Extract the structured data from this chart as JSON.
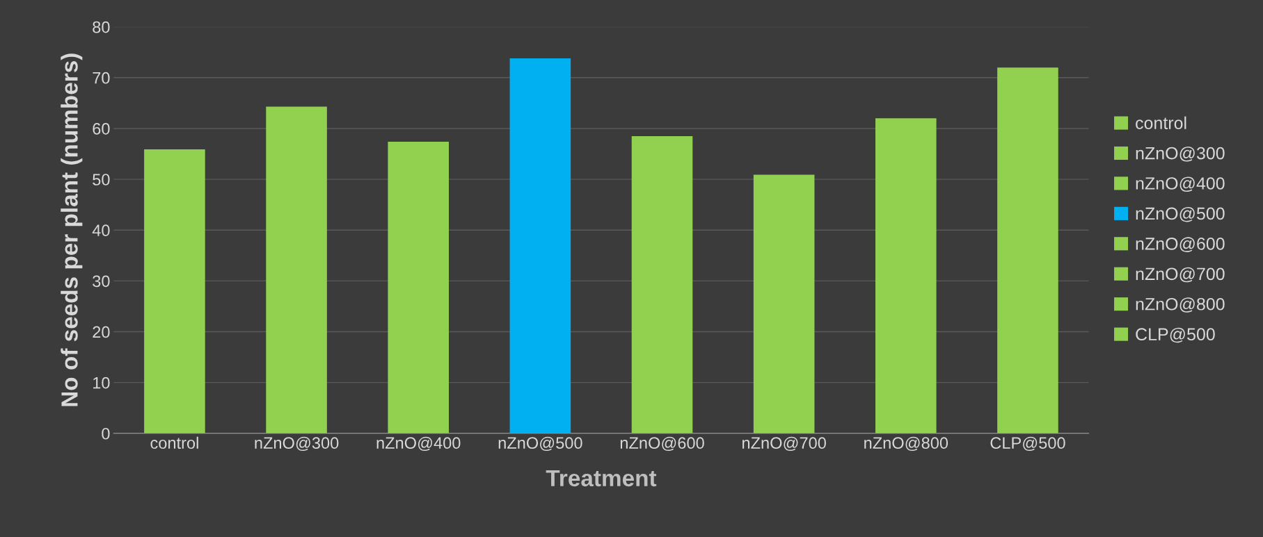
{
  "chart_data": {
    "type": "bar",
    "xlabel": "Treatment",
    "ylabel": "No of seeds per plant (numbers)",
    "stacked": true,
    "categories": [
      "control",
      "nZnO@300",
      "nZnO@400",
      "nZnO@500",
      "nZnO@600",
      "nZnO@700",
      "nZnO@800",
      "CLP@500"
    ],
    "series": [
      {
        "name": "control",
        "color": "#92d050",
        "values": [
          55.9,
          null,
          null,
          null,
          null,
          null,
          null,
          null
        ]
      },
      {
        "name": "nZnO@300",
        "color": "#92d050",
        "values": [
          null,
          64.3,
          null,
          null,
          null,
          null,
          null,
          null
        ]
      },
      {
        "name": "nZnO@400",
        "color": "#92d050",
        "values": [
          null,
          null,
          57.4,
          null,
          null,
          null,
          null,
          null
        ]
      },
      {
        "name": "nZnO@500",
        "color": "#00b0f0",
        "values": [
          null,
          null,
          null,
          73.8,
          null,
          null,
          null,
          null
        ]
      },
      {
        "name": "nZnO@600",
        "color": "#92d050",
        "values": [
          null,
          null,
          null,
          null,
          58.5,
          null,
          null,
          null
        ]
      },
      {
        "name": "nZnO@700",
        "color": "#92d050",
        "values": [
          null,
          null,
          null,
          null,
          null,
          50.9,
          null,
          null
        ]
      },
      {
        "name": "nZnO@800",
        "color": "#92d050",
        "values": [
          null,
          null,
          null,
          null,
          null,
          null,
          62,
          null
        ]
      },
      {
        "name": "CLP@500",
        "color": "#92d050",
        "values": [
          null,
          null,
          null,
          null,
          null,
          null,
          null,
          72
        ]
      }
    ],
    "ylim": [
      0,
      80
    ],
    "yticks": [
      0,
      10,
      20,
      30,
      40,
      50,
      60,
      70,
      80
    ],
    "grid": "y",
    "legend": "right"
  }
}
